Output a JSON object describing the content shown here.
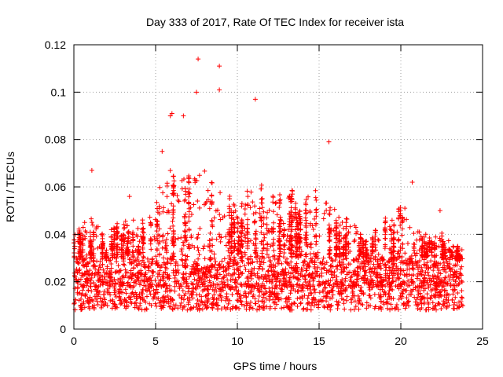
{
  "chart_data": {
    "type": "scatter",
    "title": "Day 333 of 2017, Rate Of TEC Index for receiver ista",
    "xlabel": "GPS time / hours",
    "ylabel": "ROTI / TECUs",
    "xlim": [
      0,
      25
    ],
    "ylim": [
      0,
      0.12
    ],
    "x_ticks": [
      "0",
      "5",
      "10",
      "15",
      "20",
      "25"
    ],
    "y_ticks": [
      "0",
      "0.02",
      "0.04",
      "0.06",
      "0.08",
      "0.1",
      "0.12"
    ],
    "grid": true,
    "marker": "+",
    "color": "#ff0000",
    "x_range_of_data": [
      0,
      23.8
    ],
    "notable_points": [
      {
        "x": 7.6,
        "y": 0.114
      },
      {
        "x": 8.9,
        "y": 0.111
      },
      {
        "x": 8.9,
        "y": 0.101
      },
      {
        "x": 7.5,
        "y": 0.1
      },
      {
        "x": 11.1,
        "y": 0.097
      },
      {
        "x": 6.0,
        "y": 0.091
      },
      {
        "x": 5.9,
        "y": 0.09
      },
      {
        "x": 6.7,
        "y": 0.09
      },
      {
        "x": 5.4,
        "y": 0.075
      },
      {
        "x": 15.6,
        "y": 0.079
      },
      {
        "x": 20.7,
        "y": 0.062
      },
      {
        "x": 22.4,
        "y": 0.05
      },
      {
        "x": 1.1,
        "y": 0.067
      },
      {
        "x": 3.4,
        "y": 0.056
      }
    ],
    "envelope": {
      "hours": [
        0,
        1,
        2,
        3,
        4,
        5,
        6,
        7,
        8,
        9,
        10,
        11,
        12,
        13,
        14,
        15,
        16,
        17,
        18,
        19,
        20,
        21,
        22,
        23,
        23.8
      ],
      "typical_upper_roti": [
        0.04,
        0.048,
        0.04,
        0.048,
        0.045,
        0.055,
        0.07,
        0.065,
        0.068,
        0.06,
        0.055,
        0.06,
        0.06,
        0.058,
        0.058,
        0.06,
        0.05,
        0.045,
        0.04,
        0.048,
        0.055,
        0.042,
        0.04,
        0.038,
        0.035
      ],
      "dense_band_roti": [
        0.008,
        0.03
      ]
    }
  }
}
